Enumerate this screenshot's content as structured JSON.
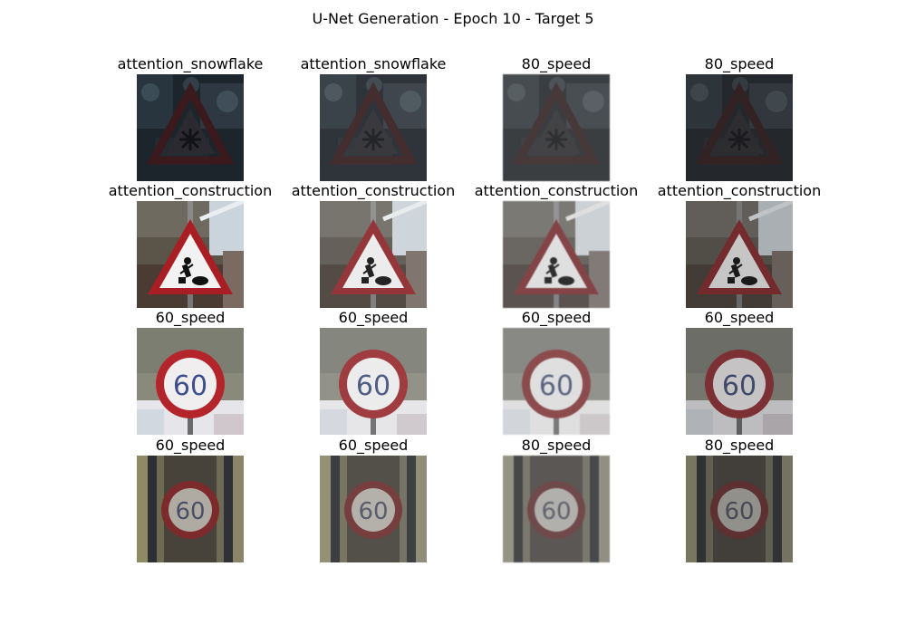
{
  "figure": {
    "title": "U-Net Generation - Epoch 10 - Target 5"
  },
  "grid": [
    [
      {
        "label": "attention_snowflake",
        "scene": "snow",
        "tone": "orig"
      },
      {
        "label": "attention_snowflake",
        "scene": "snow",
        "tone": "faded"
      },
      {
        "label": "80_speed",
        "scene": "snow",
        "tone": "faded2"
      },
      {
        "label": "80_speed",
        "scene": "snow",
        "tone": "dark"
      }
    ],
    [
      {
        "label": "attention_construction",
        "scene": "construction",
        "tone": "orig"
      },
      {
        "label": "attention_construction",
        "scene": "construction",
        "tone": "faded"
      },
      {
        "label": "attention_construction",
        "scene": "construction",
        "tone": "faded2"
      },
      {
        "label": "attention_construction",
        "scene": "construction",
        "tone": "dark"
      }
    ],
    [
      {
        "label": "60_speed",
        "scene": "speedA",
        "tone": "orig"
      },
      {
        "label": "60_speed",
        "scene": "speedA",
        "tone": "faded"
      },
      {
        "label": "60_speed",
        "scene": "speedA",
        "tone": "faded2"
      },
      {
        "label": "60_speed",
        "scene": "speedA",
        "tone": "dark"
      }
    ],
    [
      {
        "label": "60_speed",
        "scene": "speedB",
        "tone": "orig"
      },
      {
        "label": "60_speed",
        "scene": "speedB",
        "tone": "faded"
      },
      {
        "label": "80_speed",
        "scene": "speedB",
        "tone": "faded2"
      },
      {
        "label": "80_speed",
        "scene": "speedB",
        "tone": "dark"
      }
    ]
  ],
  "sign_text": {
    "speed": "60"
  }
}
